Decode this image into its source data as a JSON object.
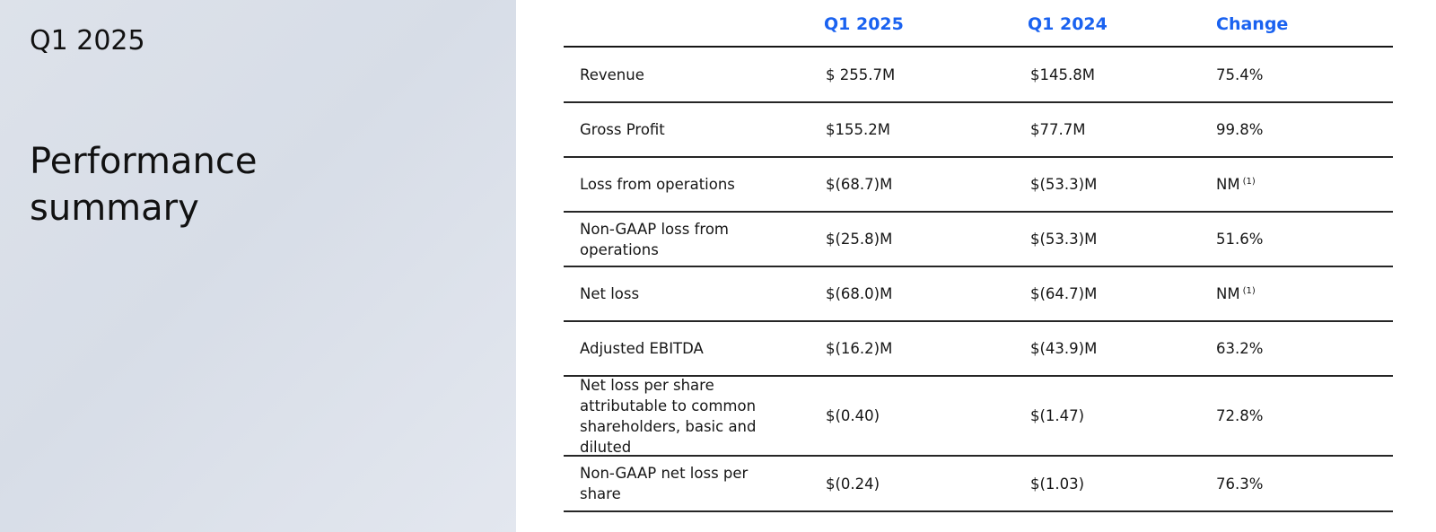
{
  "left": {
    "period": "Q1 2025",
    "title": "Performance summary"
  },
  "table": {
    "headers": [
      "Q1 2025",
      "Q1 2024",
      "Change"
    ],
    "rows": [
      {
        "label": "Revenue",
        "q1_2025": "$ 255.7M",
        "q1_2024": "$145.8M",
        "change": "75.4%",
        "note": ""
      },
      {
        "label": "Gross Profit",
        "q1_2025": "$155.2M",
        "q1_2024": "$77.7M",
        "change": "99.8%",
        "note": ""
      },
      {
        "label": "Loss from operations",
        "q1_2025": "$(68.7)M",
        "q1_2024": "$(53.3)M",
        "change": "NM",
        "note": "(1)"
      },
      {
        "label": "Non-GAAP loss from operations",
        "q1_2025": "$(25.8)M",
        "q1_2024": "$(53.3)M",
        "change": "51.6%",
        "note": ""
      },
      {
        "label": "Net loss",
        "q1_2025": "$(68.0)M",
        "q1_2024": "$(64.7)M",
        "change": "NM",
        "note": "(1)"
      },
      {
        "label": "Adjusted EBITDA",
        "q1_2025": "$(16.2)M",
        "q1_2024": "$(43.9)M",
        "change": "63.2%",
        "note": ""
      },
      {
        "label": "Net loss per share attributable to common shareholders, basic and diluted",
        "q1_2025": "$(0.40)",
        "q1_2024": "$(1.47)",
        "change": "72.8%",
        "note": ""
      },
      {
        "label": "Non-GAAP net loss per share",
        "q1_2025": "$(0.24)",
        "q1_2024": "$(1.03)",
        "change": "76.3%",
        "note": ""
      }
    ]
  }
}
